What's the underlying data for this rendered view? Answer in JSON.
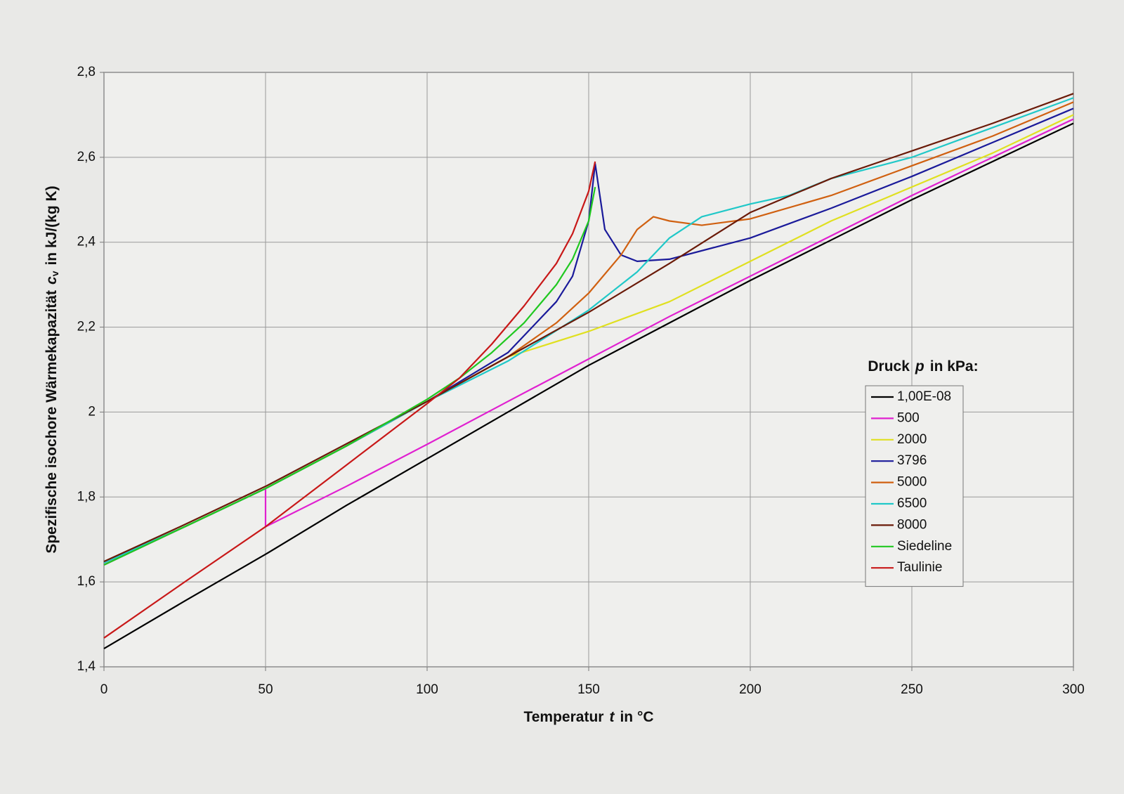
{
  "chart_data": {
    "type": "line",
    "x_label": {
      "text": "Temperatur",
      "symbol": "t",
      "unit": "in °C"
    },
    "y_label": {
      "text": "Spezifische isochore Wärmekapazität",
      "symbol": "c",
      "subscript": "v",
      "unit": "in kJ/(kg K)"
    },
    "legend_title": {
      "text": "Druck",
      "symbol": "p",
      "unit": "in kPa:"
    },
    "legend": "right",
    "grid": true,
    "xlim": [
      0,
      300
    ],
    "xticks": [
      0,
      50,
      100,
      150,
      200,
      250,
      300
    ],
    "ylim": [
      1.4,
      2.8
    ],
    "yticks": [
      {
        "value": 1.4,
        "label": "1,4"
      },
      {
        "value": 1.6,
        "label": "1,6"
      },
      {
        "value": 1.8,
        "label": "1,8"
      },
      2,
      {
        "value": 2.2,
        "label": "2,2"
      },
      {
        "value": 2.4,
        "label": "2,4"
      },
      {
        "value": 2.6,
        "label": "2,6"
      },
      {
        "value": 2.8,
        "label": "2,8"
      }
    ],
    "series": [
      {
        "name": "1,00E-08",
        "color": "#000000",
        "x": [
          0,
          25,
          50,
          75,
          100,
          125,
          150,
          175,
          200,
          225,
          250,
          275,
          300
        ],
        "values": [
          1.443,
          1.555,
          1.665,
          1.78,
          1.89,
          2.0,
          2.11,
          2.21,
          2.31,
          2.405,
          2.5,
          2.59,
          2.68
        ]
      },
      {
        "name": "500",
        "color": "#e020d0",
        "x": [
          0,
          25,
          50,
          50,
          75,
          100,
          125,
          150,
          175,
          200,
          225,
          250,
          275,
          300
        ],
        "values": [
          1.64,
          1.73,
          1.82,
          1.73,
          1.825,
          1.924,
          2.025,
          2.125,
          2.225,
          2.32,
          2.415,
          2.51,
          2.6,
          2.69
        ]
      },
      {
        "name": "2000",
        "color": "#e0e020",
        "x": [
          0,
          25,
          50,
          75,
          100,
          125,
          150,
          175,
          200,
          225,
          250,
          275,
          300
        ],
        "values": [
          1.645,
          1.73,
          1.82,
          1.92,
          2.025,
          2.13,
          2.19,
          2.26,
          2.355,
          2.45,
          2.53,
          2.61,
          2.7
        ]
      },
      {
        "name": "3796",
        "color": "#1a1a9a",
        "x": [
          0,
          25,
          50,
          75,
          100,
          125,
          140,
          145,
          150,
          152,
          155,
          160,
          165,
          175,
          200,
          225,
          250,
          275,
          300
        ],
        "values": [
          1.645,
          1.73,
          1.82,
          1.92,
          2.025,
          2.14,
          2.26,
          2.32,
          2.45,
          2.585,
          2.43,
          2.37,
          2.355,
          2.36,
          2.41,
          2.48,
          2.555,
          2.635,
          2.715
        ]
      },
      {
        "name": "5000",
        "color": "#d06010",
        "x": [
          0,
          25,
          50,
          75,
          100,
          125,
          140,
          150,
          160,
          165,
          170,
          175,
          185,
          200,
          225,
          250,
          275,
          300
        ],
        "values": [
          1.645,
          1.73,
          1.82,
          1.92,
          2.025,
          2.13,
          2.21,
          2.28,
          2.37,
          2.43,
          2.46,
          2.45,
          2.44,
          2.455,
          2.51,
          2.58,
          2.65,
          2.73
        ]
      },
      {
        "name": "6500",
        "color": "#20c8c8",
        "x": [
          0,
          25,
          50,
          75,
          100,
          125,
          150,
          165,
          175,
          185,
          200,
          212,
          225,
          250,
          275,
          300
        ],
        "values": [
          1.645,
          1.73,
          1.82,
          1.92,
          2.025,
          2.12,
          2.24,
          2.33,
          2.41,
          2.46,
          2.49,
          2.51,
          2.55,
          2.6,
          2.67,
          2.74
        ]
      },
      {
        "name": "8000",
        "color": "#6a1a08",
        "x": [
          0,
          25,
          50,
          75,
          100,
          125,
          150,
          175,
          200,
          225,
          250,
          275,
          300
        ],
        "values": [
          1.648,
          1.735,
          1.825,
          1.925,
          2.025,
          2.13,
          2.235,
          2.35,
          2.47,
          2.55,
          2.615,
          2.68,
          2.75
        ]
      },
      {
        "name": "Siedeline",
        "color": "#20c820",
        "x": [
          0,
          25,
          50,
          75,
          100,
          110,
          120,
          130,
          140,
          145,
          150,
          152
        ],
        "values": [
          1.64,
          1.73,
          1.82,
          1.92,
          2.03,
          2.08,
          2.14,
          2.21,
          2.3,
          2.36,
          2.45,
          2.53
        ]
      },
      {
        "name": "Taulinie",
        "color": "#c81818",
        "x": [
          0,
          25,
          50,
          75,
          100,
          110,
          120,
          130,
          140,
          145,
          150,
          152
        ],
        "values": [
          1.468,
          1.6,
          1.73,
          1.875,
          2.02,
          2.08,
          2.16,
          2.25,
          2.35,
          2.42,
          2.52,
          2.59
        ]
      }
    ]
  }
}
